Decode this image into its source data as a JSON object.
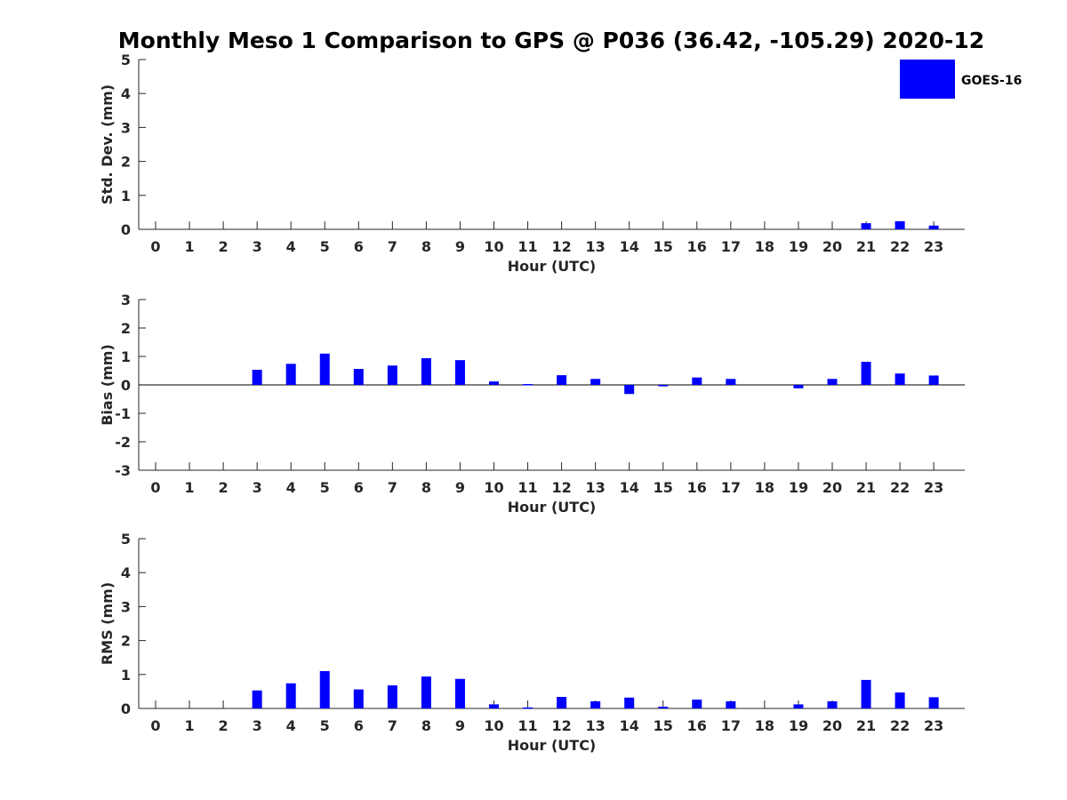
{
  "title": "Monthly Meso 1 Comparison to GPS @ P036 (36.42, -105.29) 2020-12",
  "legend": {
    "label": "GOES-16",
    "color": "#0000ff",
    "placement": "top-right"
  },
  "chart_data": [
    {
      "type": "bar",
      "ylabel": "Std. Dev. (mm)",
      "xlabel": "Hour (UTC)",
      "categories": [
        "0",
        "1",
        "2",
        "3",
        "4",
        "5",
        "6",
        "7",
        "8",
        "9",
        "10",
        "11",
        "12",
        "13",
        "14",
        "15",
        "16",
        "17",
        "18",
        "19",
        "20",
        "21",
        "22",
        "23"
      ],
      "ylim": [
        0,
        5
      ],
      "yticks": [
        "0",
        "1",
        "2",
        "3",
        "4",
        "5"
      ],
      "series": [
        {
          "name": "GOES-16",
          "values": [
            null,
            null,
            null,
            null,
            null,
            null,
            null,
            null,
            null,
            null,
            null,
            null,
            null,
            null,
            null,
            null,
            null,
            null,
            null,
            null,
            null,
            0.18,
            0.24,
            0.11
          ]
        }
      ]
    },
    {
      "type": "bar",
      "ylabel": "Bias (mm)",
      "xlabel": "Hour (UTC)",
      "categories": [
        "0",
        "1",
        "2",
        "3",
        "4",
        "5",
        "6",
        "7",
        "8",
        "9",
        "10",
        "11",
        "12",
        "13",
        "14",
        "15",
        "16",
        "17",
        "18",
        "19",
        "20",
        "21",
        "22",
        "23"
      ],
      "ylim": [
        -3,
        3
      ],
      "yticks": [
        "-3",
        "-2",
        "-1",
        "0",
        "1",
        "2",
        "3"
      ],
      "series": [
        {
          "name": "GOES-16",
          "values": [
            null,
            null,
            null,
            0.53,
            0.74,
            1.1,
            0.56,
            0.68,
            0.94,
            0.87,
            0.12,
            0.03,
            0.34,
            0.21,
            -0.32,
            -0.05,
            0.26,
            0.21,
            null,
            -0.12,
            0.21,
            0.81,
            0.4,
            0.33
          ]
        }
      ]
    },
    {
      "type": "bar",
      "ylabel": "RMS (mm)",
      "xlabel": "Hour (UTC)",
      "categories": [
        "0",
        "1",
        "2",
        "3",
        "4",
        "5",
        "6",
        "7",
        "8",
        "9",
        "10",
        "11",
        "12",
        "13",
        "14",
        "15",
        "16",
        "17",
        "18",
        "19",
        "20",
        "21",
        "22",
        "23"
      ],
      "ylim": [
        0,
        5
      ],
      "yticks": [
        "0",
        "1",
        "2",
        "3",
        "4",
        "5"
      ],
      "series": [
        {
          "name": "GOES-16",
          "values": [
            null,
            null,
            null,
            0.53,
            0.74,
            1.1,
            0.56,
            0.68,
            0.94,
            0.87,
            0.12,
            0.03,
            0.34,
            0.21,
            0.32,
            0.05,
            0.26,
            0.21,
            null,
            0.12,
            0.21,
            0.84,
            0.47,
            0.33
          ]
        }
      ]
    }
  ]
}
